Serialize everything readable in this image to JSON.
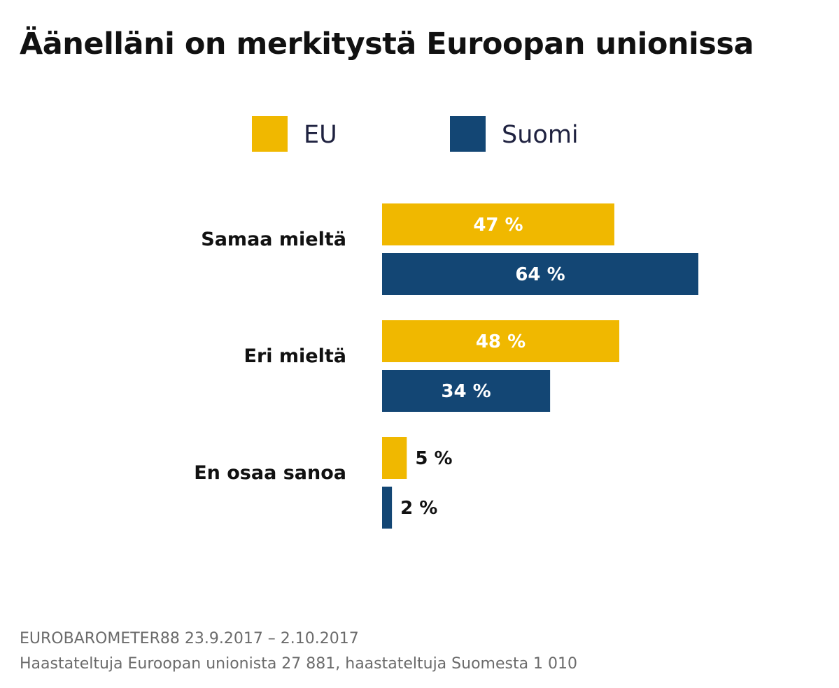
{
  "chart_data": {
    "type": "bar",
    "orientation": "horizontal",
    "title": "Äänelläni on merkitystä Euroopan unionissa",
    "categories": [
      "Samaa mieltä",
      "Eri mieltä",
      "En osaa sanoa"
    ],
    "series": [
      {
        "name": "EU",
        "values": [
          47,
          48,
          5
        ],
        "labels": [
          "47 %",
          "48 %",
          "5 %"
        ],
        "color": "#f0b800"
      },
      {
        "name": "Suomi",
        "values": [
          64,
          34,
          2
        ],
        "labels": [
          "64 %",
          "34 %",
          "2 %"
        ],
        "color": "#134674"
      }
    ],
    "unit": "%",
    "xlim": [
      0,
      64
    ],
    "grid": false,
    "legend": "top"
  },
  "footer": {
    "source": "EUROBAROMETER88 23.9.2017 – 2.10.2017",
    "sample": "Haastateltuja Euroopan unionista 27 881, haastateltuja Suomesta 1 010"
  }
}
